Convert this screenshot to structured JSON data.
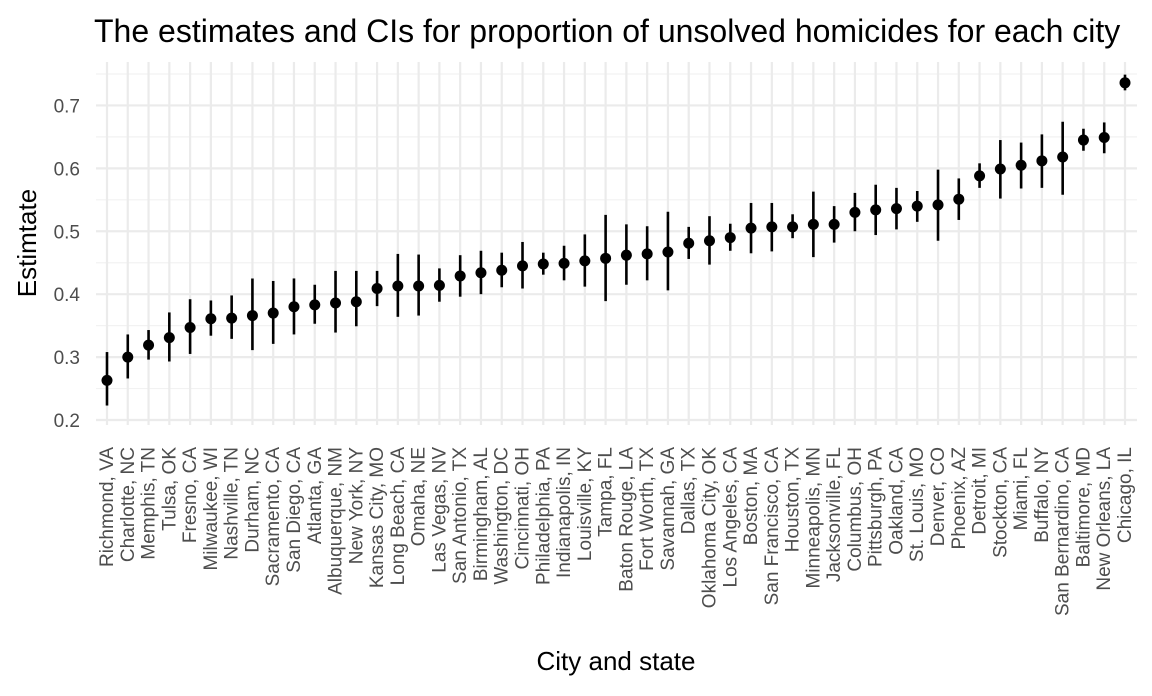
{
  "chart_data": {
    "type": "scatter",
    "title": "The estimates and CIs for proportion of unsolved homicides for each city",
    "xlabel": "City and state",
    "ylabel": "Estimtate",
    "ylim": [
      0.2,
      0.75
    ],
    "yticks": [
      "0.2",
      "0.3",
      "0.4",
      "0.5",
      "0.6",
      "0.7"
    ],
    "grid": true,
    "error_bars": true,
    "marker_color": "#000000",
    "categories": [
      "Richmond, VA",
      "Charlotte, NC",
      "Memphis, TN",
      "Tulsa, OK",
      "Fresno, CA",
      "Milwaukee, WI",
      "Nashville, TN",
      "Durham, NC",
      "Sacramento, CA",
      "San Diego, CA",
      "Atlanta, GA",
      "Albuquerque, NM",
      "New York, NY",
      "Kansas City, MO",
      "Long Beach, CA",
      "Omaha, NE",
      "Las Vegas, NV",
      "San Antonio, TX",
      "Birmingham, AL",
      "Washington, DC",
      "Cincinnati, OH",
      "Philadelphia, PA",
      "Indianapolis, IN",
      "Louisville, KY",
      "Tampa, FL",
      "Baton Rouge, LA",
      "Fort Worth, TX",
      "Savannah, GA",
      "Dallas, TX",
      "Oklahoma City, OK",
      "Los Angeles, CA",
      "Boston, MA",
      "San Francisco, CA",
      "Houston, TX",
      "Minneapolis, MN",
      "Jacksonville, FL",
      "Columbus, OH",
      "Pittsburgh, PA",
      "Oakland, CA",
      "St. Louis, MO",
      "Denver, CO",
      "Phoenix, AZ",
      "Detroit, MI",
      "Stockton, CA",
      "Miami, FL",
      "Buffalo, NY",
      "San Bernardino, CA",
      "Baltimore, MD",
      "New Orleans, LA",
      "Chicago, IL"
    ],
    "estimate": [
      0.263,
      0.3,
      0.319,
      0.331,
      0.347,
      0.361,
      0.362,
      0.366,
      0.37,
      0.38,
      0.383,
      0.386,
      0.388,
      0.409,
      0.413,
      0.413,
      0.414,
      0.429,
      0.434,
      0.438,
      0.445,
      0.448,
      0.449,
      0.453,
      0.457,
      0.462,
      0.464,
      0.467,
      0.481,
      0.485,
      0.49,
      0.505,
      0.507,
      0.507,
      0.511,
      0.511,
      0.53,
      0.534,
      0.536,
      0.54,
      0.542,
      0.551,
      0.588,
      0.599,
      0.605,
      0.612,
      0.618,
      0.645,
      0.649,
      0.736
    ],
    "ci_low": [
      0.223,
      0.266,
      0.296,
      0.293,
      0.305,
      0.334,
      0.329,
      0.311,
      0.321,
      0.336,
      0.353,
      0.339,
      0.349,
      0.381,
      0.364,
      0.366,
      0.388,
      0.396,
      0.4,
      0.411,
      0.409,
      0.431,
      0.422,
      0.412,
      0.389,
      0.415,
      0.422,
      0.406,
      0.456,
      0.447,
      0.469,
      0.465,
      0.468,
      0.489,
      0.459,
      0.482,
      0.5,
      0.494,
      0.503,
      0.515,
      0.485,
      0.518,
      0.569,
      0.552,
      0.568,
      0.569,
      0.558,
      0.628,
      0.624,
      0.724
    ],
    "ci_high": [
      0.308,
      0.336,
      0.343,
      0.371,
      0.392,
      0.39,
      0.398,
      0.425,
      0.421,
      0.425,
      0.415,
      0.437,
      0.437,
      0.437,
      0.464,
      0.463,
      0.441,
      0.462,
      0.469,
      0.466,
      0.483,
      0.466,
      0.477,
      0.495,
      0.526,
      0.511,
      0.508,
      0.531,
      0.507,
      0.524,
      0.512,
      0.545,
      0.545,
      0.527,
      0.563,
      0.54,
      0.561,
      0.574,
      0.569,
      0.564,
      0.598,
      0.584,
      0.608,
      0.645,
      0.641,
      0.654,
      0.674,
      0.663,
      0.673,
      0.749
    ]
  }
}
